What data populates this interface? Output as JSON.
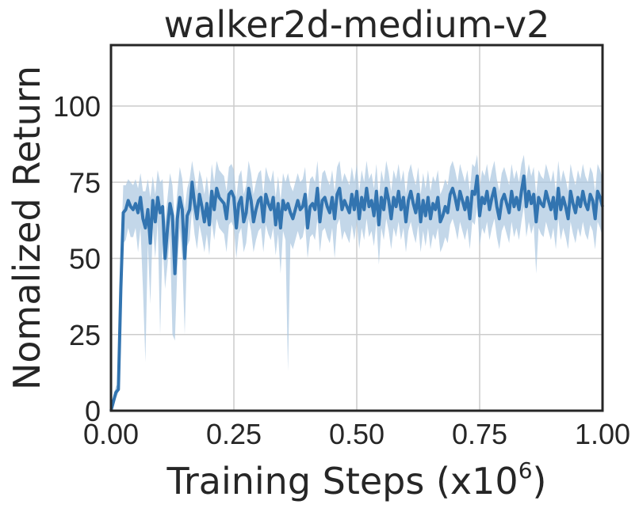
{
  "chart_data": {
    "type": "line",
    "title": "walker2d-medium-v2",
    "xlabel": "Training Steps (x",
    "xlabel_exp_base": "10",
    "xlabel_exp": "6",
    "xlabel_suffix": ")",
    "ylabel": "Nomalized Return",
    "xlim": [
      0,
      1.0
    ],
    "ylim": [
      0,
      120
    ],
    "xticks": [
      "0.00",
      "0.25",
      "0.50",
      "0.75",
      "1.00"
    ],
    "yticks": [
      "0",
      "25",
      "50",
      "75",
      "100"
    ],
    "grid": true,
    "colors": {
      "line": "#3274b0",
      "band": "#a9c6e0"
    },
    "series": [
      {
        "x": [
          0.0,
          0.005,
          0.01,
          0.015,
          0.02,
          0.025,
          0.03,
          0.035,
          0.04,
          0.045,
          0.05,
          0.055,
          0.06,
          0.065,
          0.07,
          0.075,
          0.08,
          0.085,
          0.09,
          0.095,
          0.1,
          0.105,
          0.11,
          0.115,
          0.12,
          0.125,
          0.13,
          0.135,
          0.14,
          0.145,
          0.15,
          0.155,
          0.16,
          0.165,
          0.17,
          0.175,
          0.18,
          0.185,
          0.19,
          0.195,
          0.2,
          0.205,
          0.21,
          0.215,
          0.22,
          0.225,
          0.23,
          0.235,
          0.24,
          0.245,
          0.25,
          0.255,
          0.26,
          0.265,
          0.27,
          0.275,
          0.28,
          0.285,
          0.29,
          0.295,
          0.3,
          0.305,
          0.31,
          0.315,
          0.32,
          0.325,
          0.33,
          0.335,
          0.34,
          0.345,
          0.35,
          0.355,
          0.36,
          0.365,
          0.37,
          0.375,
          0.38,
          0.385,
          0.39,
          0.395,
          0.4,
          0.405,
          0.41,
          0.415,
          0.42,
          0.425,
          0.43,
          0.435,
          0.44,
          0.445,
          0.45,
          0.455,
          0.46,
          0.465,
          0.47,
          0.475,
          0.48,
          0.485,
          0.49,
          0.495,
          0.5,
          0.505,
          0.51,
          0.515,
          0.52,
          0.525,
          0.53,
          0.535,
          0.54,
          0.545,
          0.55,
          0.555,
          0.56,
          0.565,
          0.57,
          0.575,
          0.58,
          0.585,
          0.59,
          0.595,
          0.6,
          0.605,
          0.61,
          0.615,
          0.62,
          0.625,
          0.63,
          0.635,
          0.64,
          0.645,
          0.65,
          0.655,
          0.66,
          0.665,
          0.67,
          0.675,
          0.68,
          0.685,
          0.69,
          0.695,
          0.7,
          0.705,
          0.71,
          0.715,
          0.72,
          0.725,
          0.73,
          0.735,
          0.74,
          0.745,
          0.75,
          0.755,
          0.76,
          0.765,
          0.77,
          0.775,
          0.78,
          0.785,
          0.79,
          0.795,
          0.8,
          0.805,
          0.81,
          0.815,
          0.82,
          0.825,
          0.83,
          0.835,
          0.84,
          0.845,
          0.85,
          0.855,
          0.86,
          0.865,
          0.87,
          0.875,
          0.88,
          0.885,
          0.89,
          0.895,
          0.9,
          0.905,
          0.91,
          0.915,
          0.92,
          0.925,
          0.93,
          0.935,
          0.94,
          0.945,
          0.95,
          0.955,
          0.96,
          0.965,
          0.97,
          0.975,
          0.98,
          0.985,
          0.99,
          0.995,
          1.0
        ],
        "y": [
          0,
          3,
          6,
          7,
          40,
          65,
          66,
          69,
          67,
          66,
          68,
          65,
          70,
          63,
          60,
          66,
          55,
          69,
          62,
          70,
          65,
          67,
          50,
          60,
          68,
          64,
          45,
          63,
          70,
          66,
          50,
          64,
          66,
          75,
          68,
          63,
          71,
          67,
          62,
          68,
          61,
          72,
          66,
          73,
          70,
          69,
          68,
          63,
          71,
          72,
          70,
          60,
          68,
          70,
          62,
          65,
          73,
          69,
          62,
          66,
          69,
          70,
          62,
          71,
          68,
          66,
          70,
          61,
          68,
          60,
          69,
          66,
          68,
          65,
          63,
          66,
          69,
          66,
          67,
          71,
          60,
          67,
          68,
          66,
          73,
          62,
          69,
          70,
          67,
          65,
          70,
          63,
          71,
          73,
          66,
          69,
          67,
          65,
          71,
          66,
          72,
          63,
          70,
          66,
          73,
          67,
          69,
          64,
          72,
          61,
          70,
          66,
          73,
          69,
          63,
          70,
          67,
          72,
          66,
          70,
          62,
          69,
          72,
          68,
          65,
          71,
          62,
          69,
          64,
          70,
          63,
          68,
          66,
          70,
          62,
          64,
          67,
          65,
          71,
          73,
          70,
          66,
          72,
          69,
          66,
          70,
          63,
          72,
          71,
          77,
          64,
          70,
          68,
          72,
          66,
          70,
          73,
          67,
          63,
          69,
          71,
          68,
          65,
          72,
          67,
          70,
          66,
          72,
          77,
          67,
          72,
          68,
          71,
          62,
          70,
          68,
          67,
          72,
          69,
          66,
          70,
          63,
          73,
          66,
          70,
          67,
          63,
          72,
          68,
          65,
          70,
          67,
          72,
          68,
          66,
          71,
          69,
          63,
          72,
          70,
          67
        ],
        "lower": [
          0,
          1,
          4,
          6,
          30,
          55,
          56,
          60,
          57,
          57,
          60,
          52,
          60,
          40,
          16,
          55,
          35,
          60,
          50,
          62,
          25,
          55,
          40,
          48,
          58,
          25,
          23,
          47,
          60,
          50,
          25,
          54,
          56,
          66,
          58,
          53,
          61,
          57,
          52,
          58,
          51,
          62,
          56,
          63,
          60,
          59,
          58,
          52,
          61,
          62,
          60,
          50,
          58,
          60,
          52,
          55,
          63,
          59,
          52,
          56,
          59,
          60,
          52,
          61,
          58,
          56,
          60,
          51,
          58,
          45,
          59,
          56,
          13,
          55,
          53,
          56,
          59,
          56,
          57,
          61,
          50,
          57,
          58,
          56,
          63,
          52,
          59,
          60,
          57,
          55,
          60,
          50,
          61,
          63,
          56,
          59,
          57,
          55,
          61,
          56,
          62,
          53,
          60,
          56,
          63,
          57,
          59,
          54,
          62,
          48,
          60,
          56,
          63,
          59,
          53,
          60,
          57,
          62,
          56,
          60,
          52,
          59,
          62,
          58,
          55,
          61,
          52,
          59,
          54,
          60,
          53,
          58,
          56,
          60,
          52,
          54,
          57,
          55,
          61,
          63,
          60,
          56,
          62,
          59,
          56,
          60,
          53,
          62,
          61,
          67,
          54,
          60,
          58,
          62,
          56,
          60,
          63,
          57,
          53,
          59,
          61,
          58,
          55,
          62,
          57,
          60,
          56,
          62,
          67,
          57,
          62,
          58,
          61,
          45,
          60,
          58,
          57,
          62,
          59,
          56,
          60,
          53,
          63,
          56,
          60,
          57,
          53,
          62,
          58,
          55,
          60,
          57,
          62,
          58,
          56,
          61,
          59,
          53,
          62,
          60,
          57
        ],
        "upper": [
          1,
          5,
          8,
          9,
          50,
          74,
          74,
          76,
          75,
          74,
          76,
          73,
          78,
          72,
          72,
          76,
          70,
          77,
          71,
          79,
          75,
          76,
          62,
          70,
          78,
          74,
          62,
          72,
          80,
          76,
          66,
          73,
          76,
          82,
          77,
          72,
          79,
          76,
          71,
          77,
          70,
          81,
          75,
          82,
          79,
          78,
          77,
          72,
          80,
          81,
          79,
          70,
          77,
          79,
          71,
          74,
          82,
          78,
          71,
          75,
          78,
          79,
          71,
          80,
          77,
          75,
          79,
          70,
          77,
          69,
          78,
          75,
          78,
          74,
          72,
          75,
          78,
          75,
          76,
          80,
          69,
          76,
          77,
          75,
          82,
          71,
          78,
          79,
          76,
          74,
          79,
          72,
          80,
          82,
          75,
          78,
          76,
          74,
          80,
          75,
          81,
          72,
          79,
          75,
          82,
          76,
          78,
          73,
          81,
          70,
          79,
          75,
          82,
          78,
          72,
          79,
          76,
          81,
          75,
          79,
          71,
          78,
          81,
          77,
          74,
          80,
          71,
          78,
          73,
          79,
          72,
          77,
          75,
          79,
          71,
          73,
          76,
          74,
          80,
          82,
          79,
          75,
          81,
          78,
          75,
          79,
          72,
          81,
          80,
          84,
          73,
          79,
          77,
          81,
          75,
          79,
          82,
          76,
          72,
          78,
          80,
          77,
          74,
          81,
          76,
          79,
          75,
          81,
          84,
          76,
          81,
          77,
          80,
          71,
          79,
          77,
          76,
          81,
          78,
          75,
          79,
          72,
          82,
          75,
          79,
          76,
          72,
          81,
          77,
          74,
          79,
          76,
          81,
          77,
          75,
          80,
          78,
          72,
          81,
          79,
          76
        ]
      }
    ]
  }
}
